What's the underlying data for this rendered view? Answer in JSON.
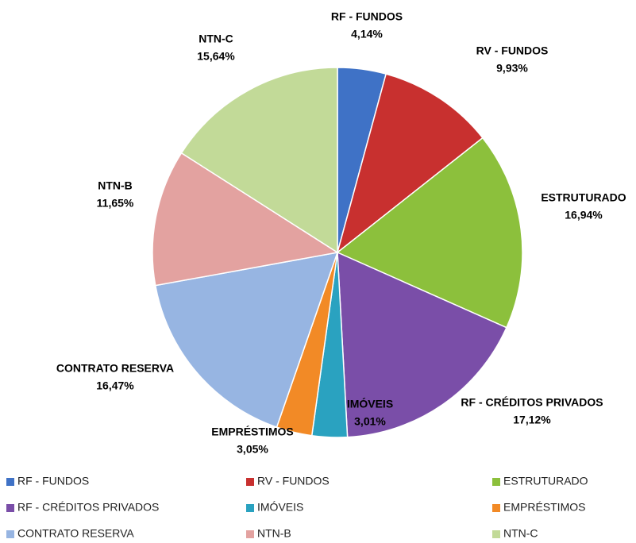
{
  "chart_data": {
    "type": "pie",
    "categories": [
      "RF - FUNDOS",
      "RV - FUNDOS",
      "ESTRUTURADO",
      "RF - CRÉDITOS PRIVADOS",
      "IMÓVEIS",
      "EMPRÉSTIMOS",
      "CONTRATO RESERVA",
      "NTN-B",
      "NTN-C"
    ],
    "values": [
      4.14,
      9.93,
      16.94,
      17.12,
      3.01,
      3.05,
      16.47,
      11.65,
      15.64
    ],
    "value_labels": [
      "4,14%",
      "9,93%",
      "16,94%",
      "17,12%",
      "3,01%",
      "3,05%",
      "16,47%",
      "11,65%",
      "15,64%"
    ],
    "colors": [
      "#3f72c6",
      "#c8302f",
      "#8cc03c",
      "#7a4ea8",
      "#2aa2c0",
      "#f28a26",
      "#97b5e2",
      "#e3a2a0",
      "#c2da98"
    ],
    "legend": "bottom"
  }
}
